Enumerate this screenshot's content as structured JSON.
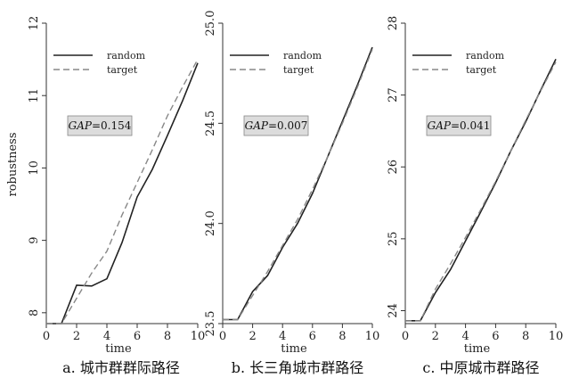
{
  "chart_data": [
    {
      "type": "line",
      "caption": "a. 城市群群际路径",
      "xlabel": "time",
      "ylabel": "robustness",
      "xlim": [
        0,
        10
      ],
      "ylim": [
        7.85,
        12.0
      ],
      "xticks": [
        0,
        2,
        4,
        6,
        8,
        10
      ],
      "yticks": [
        8,
        9,
        10,
        11,
        12
      ],
      "legend_position": "top-left",
      "gap_label": "GAP=0.154",
      "series": [
        {
          "name": "random",
          "style": "solid",
          "color": "#222222",
          "x": [
            0,
            1,
            2,
            3,
            4,
            5,
            6,
            7,
            8,
            9,
            10
          ],
          "y": [
            7.85,
            7.85,
            8.38,
            8.37,
            8.47,
            8.97,
            9.6,
            9.98,
            10.45,
            10.93,
            11.45
          ]
        },
        {
          "name": "target",
          "style": "dashed",
          "color": "#888888",
          "x": [
            0,
            1,
            2,
            3,
            4,
            5,
            6,
            7,
            8,
            9,
            10
          ],
          "y": [
            7.85,
            7.85,
            8.2,
            8.55,
            8.85,
            9.35,
            9.8,
            10.25,
            10.72,
            11.12,
            11.5
          ]
        }
      ]
    },
    {
      "type": "line",
      "caption": "b. 长三角城市群路径",
      "xlabel": "time",
      "ylabel": "",
      "xlim": [
        0,
        10
      ],
      "ylim": [
        23.5,
        25.0
      ],
      "xticks": [
        0,
        2,
        4,
        6,
        8,
        10
      ],
      "yticks": [
        23.5,
        24.0,
        24.5,
        25.0
      ],
      "ytick_labels": [
        "23.5",
        "24.0",
        "24.5",
        "25.0"
      ],
      "legend_position": "top-left",
      "gap_label": "GAP=0.007",
      "series": [
        {
          "name": "random",
          "style": "solid",
          "color": "#222222",
          "x": [
            0,
            1,
            2,
            3,
            4,
            5,
            6,
            7,
            8,
            9,
            10
          ],
          "y": [
            23.52,
            23.52,
            23.66,
            23.74,
            23.88,
            24.0,
            24.15,
            24.33,
            24.51,
            24.69,
            24.88
          ]
        },
        {
          "name": "target",
          "style": "dashed",
          "color": "#888888",
          "x": [
            0,
            1,
            2,
            3,
            4,
            5,
            6,
            7,
            8,
            9,
            10
          ],
          "y": [
            23.52,
            23.52,
            23.64,
            23.76,
            23.89,
            24.02,
            24.17,
            24.33,
            24.5,
            24.68,
            24.87
          ]
        }
      ]
    },
    {
      "type": "line",
      "caption": "c. 中原城市群路径",
      "xlabel": "time",
      "ylabel": "",
      "xlim": [
        0,
        10
      ],
      "ylim": [
        23.82,
        28.0
      ],
      "xticks": [
        0,
        2,
        4,
        6,
        8,
        10
      ],
      "yticks": [
        24,
        25,
        26,
        27,
        28
      ],
      "legend_position": "top-left",
      "gap_label": "GAP=0.041",
      "series": [
        {
          "name": "random",
          "style": "solid",
          "color": "#222222",
          "x": [
            0,
            1,
            2,
            3,
            4,
            5,
            6,
            7,
            8,
            9,
            10
          ],
          "y": [
            23.86,
            23.86,
            24.25,
            24.57,
            24.97,
            25.37,
            25.78,
            26.22,
            26.63,
            27.07,
            27.5
          ]
        },
        {
          "name": "target",
          "style": "dashed",
          "color": "#888888",
          "x": [
            0,
            1,
            2,
            3,
            4,
            5,
            6,
            7,
            8,
            9,
            10
          ],
          "y": [
            23.86,
            23.86,
            24.3,
            24.65,
            25.02,
            25.4,
            25.8,
            26.22,
            26.65,
            27.06,
            27.46
          ]
        }
      ]
    }
  ]
}
